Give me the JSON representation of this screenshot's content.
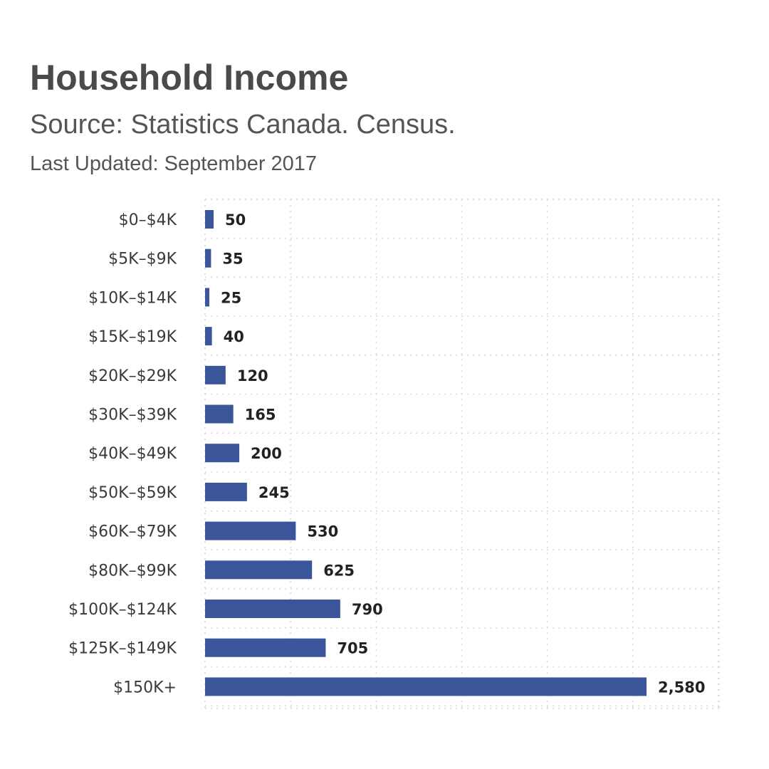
{
  "header": {
    "title": "Household Income",
    "subtitle": "Source: Statistics Canada. Census.",
    "updated": "Last Updated: September 2017"
  },
  "chart_data": {
    "type": "bar",
    "orientation": "horizontal",
    "title": "Household Income",
    "subtitle": "Source: Statistics Canada. Census.",
    "xlabel": "",
    "ylabel": "",
    "xlim": [
      0,
      3000
    ],
    "grid": true,
    "bar_color": "#3b559a",
    "categories": [
      "$0–$4K",
      "$5K–$9K",
      "$10K–$14K",
      "$15K–$19K",
      "$20K–$29K",
      "$30K–$39K",
      "$40K–$49K",
      "$50K–$59K",
      "$60K–$79K",
      "$80K–$99K",
      "$100K–$124K",
      "$125K–$149K",
      "$150K+"
    ],
    "values": [
      50,
      35,
      25,
      40,
      120,
      165,
      200,
      245,
      530,
      625,
      790,
      705,
      2580
    ],
    "value_labels": [
      "50",
      "35",
      "25",
      "40",
      "120",
      "165",
      "200",
      "245",
      "530",
      "625",
      "790",
      "705",
      "2,580"
    ]
  }
}
